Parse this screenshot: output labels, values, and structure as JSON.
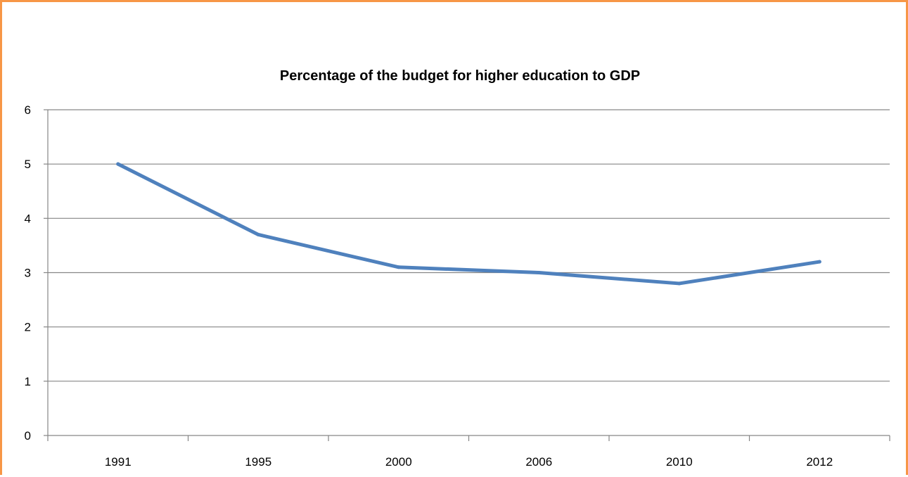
{
  "chart_data": {
    "type": "line",
    "title": "Percentage of the budget for higher education to GDP",
    "xlabel": "",
    "ylabel": "",
    "categories": [
      "1991",
      "1995",
      "2000",
      "2006",
      "2010",
      "2012"
    ],
    "series": [
      {
        "values": [
          5.0,
          3.7,
          3.1,
          3.0,
          2.8,
          3.2
        ]
      }
    ],
    "ylim": [
      0,
      6
    ],
    "yticks": [
      "0",
      "1",
      "2",
      "3",
      "4",
      "5",
      "6"
    ],
    "grid": true,
    "legend": "none",
    "colors": {
      "line": "#4f81bd",
      "frame": "#f79646",
      "grid": "#868686"
    }
  }
}
